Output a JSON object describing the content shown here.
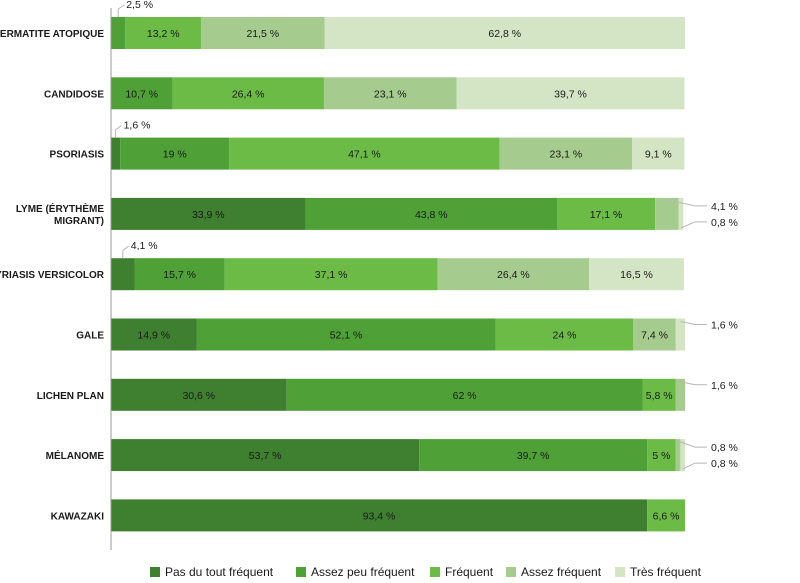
{
  "chart_data": {
    "type": "bar",
    "orientation": "horizontal",
    "stacked": true,
    "value_suffix": " %",
    "categories": [
      [
        "DERMATITE ATOPIQUE"
      ],
      [
        "CANDIDOSE"
      ],
      [
        "PSORIASIS"
      ],
      [
        "LYME (ÉRYTHÈME",
        "MIGRANT)"
      ],
      [
        "PITYRIASIS VERSICOLOR"
      ],
      [
        "GALE"
      ],
      [
        "LICHEN PLAN"
      ],
      [
        "MÉLANOME"
      ],
      [
        "KAWAZAKI"
      ]
    ],
    "series": [
      {
        "name": "Pas du tout fréquent",
        "color": "#3f7f30",
        "values": [
          0,
          0,
          1.6,
          33.9,
          4.1,
          14.9,
          30.6,
          53.7,
          93.4
        ]
      },
      {
        "name": "Assez peu fréquent",
        "color": "#4ea037",
        "values": [
          2.5,
          10.7,
          19,
          43.8,
          15.7,
          52.1,
          62,
          39.7,
          0
        ]
      },
      {
        "name": "Fréquent",
        "color": "#6cbb46",
        "values": [
          13.2,
          26.4,
          47.1,
          17.1,
          37.1,
          24,
          5.8,
          5,
          6.6
        ]
      },
      {
        "name": "Assez fréquent",
        "color": "#a6cb8e",
        "values": [
          21.5,
          23.1,
          23.1,
          4.1,
          26.4,
          7.4,
          1.6,
          0.8,
          0
        ]
      },
      {
        "name": "Très fréquent",
        "color": "#d3e5c4",
        "values": [
          62.8,
          39.7,
          9.1,
          0.8,
          16.5,
          1.6,
          0,
          0.8,
          0
        ]
      }
    ],
    "labels": [
      [
        "",
        "2,5 %",
        "13,2 %",
        "21,5 %",
        "62,8 %"
      ],
      [
        "",
        "10,7 %",
        "26,4 %",
        "23,1 %",
        "39,7 %"
      ],
      [
        "1,6 %",
        "19 %",
        "47,1 %",
        "23,1 %",
        "9,1 %"
      ],
      [
        "33,9 %",
        "43,8 %",
        "17,1 %",
        "4,1 %",
        "0,8 %"
      ],
      [
        "4,1 %",
        "15,7 %",
        "37,1 %",
        "26,4 %",
        "16,5 %"
      ],
      [
        "14,9 %",
        "52,1 %",
        "24 %",
        "7,4 %",
        "1,6 %"
      ],
      [
        "30,6 %",
        "62 %",
        "5,8 %",
        "1,6 %",
        ""
      ],
      [
        "53,7 %",
        "39,7 %",
        "5 %",
        "0,8 %",
        "0,8 %"
      ],
      [
        "93,4 %",
        "",
        "6,6 %",
        "",
        ""
      ]
    ],
    "xlim": [
      0,
      100
    ],
    "legend": "bottom",
    "grid": false
  }
}
